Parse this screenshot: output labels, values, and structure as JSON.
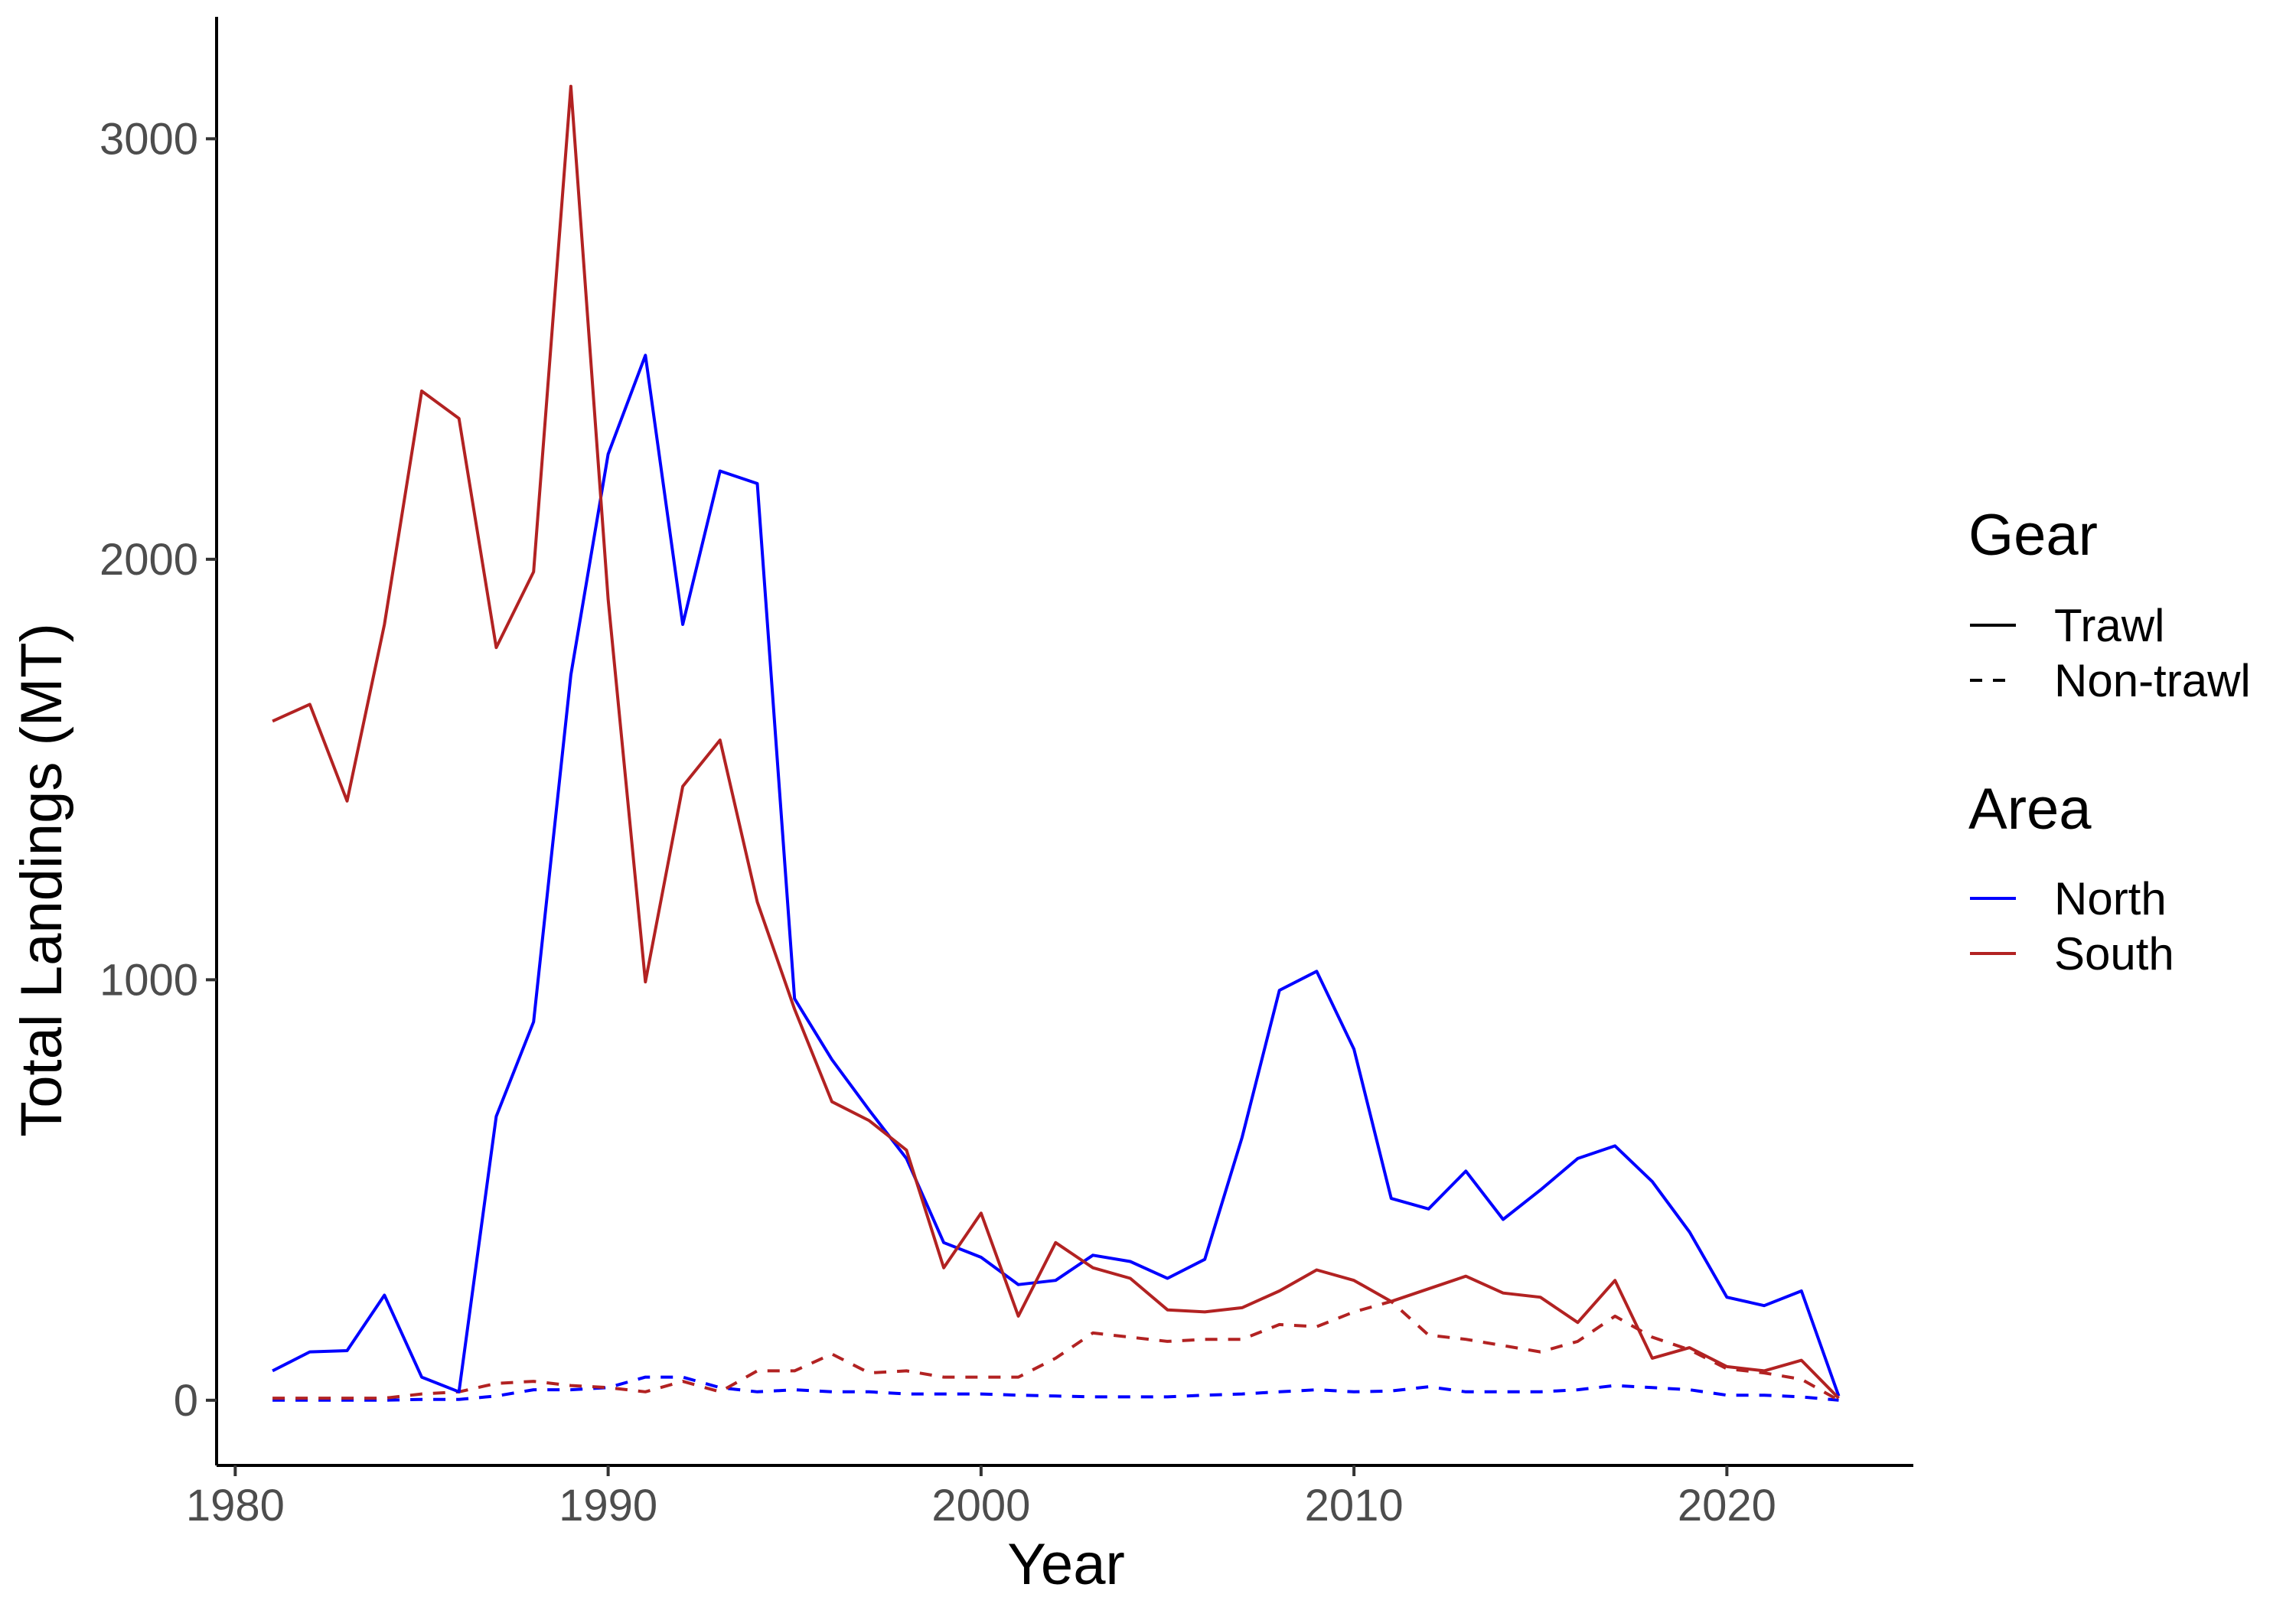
{
  "chart_data": {
    "type": "line",
    "title": "",
    "xlabel": "Year",
    "ylabel": "Total Landings (MT)",
    "xlim": [
      1979.5,
      2025
    ],
    "ylim": [
      -155,
      3290
    ],
    "x_ticks": [
      1980,
      1990,
      2000,
      2010,
      2020
    ],
    "y_ticks": [
      0,
      1000,
      2000,
      3000
    ],
    "grid": false,
    "legend_position": "right",
    "x": [
      1981,
      1982,
      1983,
      1984,
      1985,
      1986,
      1987,
      1988,
      1989,
      1990,
      1991,
      1992,
      1993,
      1994,
      1995,
      1996,
      1997,
      1998,
      1999,
      2000,
      2001,
      2002,
      2003,
      2004,
      2005,
      2006,
      2007,
      2008,
      2009,
      2010,
      2011,
      2012,
      2013,
      2014,
      2015,
      2016,
      2017,
      2018,
      2019,
      2020,
      2021,
      2022,
      2023
    ],
    "series": [
      {
        "area": "North",
        "gear": "Trawl",
        "values": [
          70,
          115,
          118,
          250,
          55,
          20,
          675,
          900,
          1725,
          2250,
          2485,
          1845,
          2210,
          2180,
          955,
          810,
          690,
          575,
          375,
          340,
          275,
          285,
          345,
          330,
          290,
          335,
          625,
          975,
          1020,
          835,
          480,
          455,
          545,
          430,
          500,
          575,
          605,
          520,
          400,
          245,
          225,
          260,
          10
        ]
      },
      {
        "area": "North",
        "gear": "Non-trawl",
        "values": [
          0,
          0,
          0,
          0,
          2,
          2,
          10,
          25,
          25,
          30,
          55,
          55,
          30,
          20,
          25,
          20,
          20,
          15,
          15,
          15,
          12,
          10,
          8,
          8,
          8,
          12,
          15,
          20,
          25,
          20,
          22,
          32,
          20,
          20,
          20,
          25,
          35,
          30,
          25,
          12,
          12,
          8,
          0
        ]
      },
      {
        "area": "South",
        "gear": "Trawl",
        "values": [
          1615,
          1655,
          1425,
          1845,
          2400,
          2335,
          1790,
          1970,
          3125,
          1905,
          995,
          1460,
          1570,
          1185,
          930,
          710,
          665,
          595,
          315,
          445,
          200,
          375,
          315,
          290,
          215,
          210,
          220,
          260,
          310,
          285,
          235,
          265,
          295,
          255,
          245,
          185,
          285,
          100,
          125,
          80,
          70,
          95,
          5
        ]
      },
      {
        "area": "South",
        "gear": "Non-trawl",
        "values": [
          5,
          5,
          5,
          5,
          15,
          20,
          40,
          45,
          35,
          30,
          20,
          45,
          20,
          70,
          70,
          110,
          65,
          70,
          55,
          55,
          55,
          100,
          160,
          150,
          140,
          145,
          145,
          180,
          175,
          210,
          235,
          155,
          145,
          130,
          115,
          140,
          200,
          150,
          120,
          75,
          65,
          50,
          0
        ]
      }
    ],
    "legend": {
      "gear_title": "Gear",
      "gear_items": [
        {
          "label": "Trawl",
          "dash": "solid"
        },
        {
          "label": "Non-trawl",
          "dash": "dashed"
        }
      ],
      "area_title": "Area",
      "area_items": [
        {
          "label": "North",
          "color": "#0000ff"
        },
        {
          "label": "South",
          "color": "#b22222"
        }
      ]
    },
    "colors": {
      "North": "#0000ff",
      "South": "#b22222"
    }
  }
}
